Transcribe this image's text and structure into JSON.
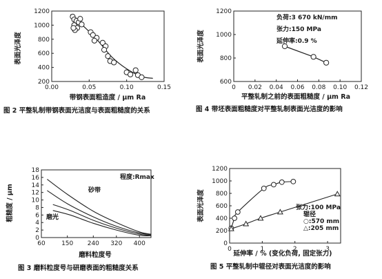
{
  "chart_data": [
    {
      "id": "fig2",
      "type": "scatter",
      "title": "",
      "caption": "图 2  平整轧制带钢表面光洁度与表面粗糙度的关系",
      "xlabel": "带钢表面粗造度 / μm Ra",
      "ylabel": "表面光泽度",
      "xlim": [
        0,
        0.15
      ],
      "ylim": [
        200,
        1200
      ],
      "xticks": [
        "0.00",
        "0.05",
        "0.10",
        "0.15"
      ],
      "yticks": [
        "200",
        "400",
        "600",
        "800",
        "1000",
        "1200"
      ],
      "points": [
        {
          "x": 0.028,
          "y": 1120
        },
        {
          "x": 0.03,
          "y": 1080
        },
        {
          "x": 0.033,
          "y": 1060
        },
        {
          "x": 0.036,
          "y": 1040
        },
        {
          "x": 0.038,
          "y": 1090
        },
        {
          "x": 0.04,
          "y": 1010
        },
        {
          "x": 0.03,
          "y": 1000
        },
        {
          "x": 0.034,
          "y": 960
        },
        {
          "x": 0.031,
          "y": 930
        },
        {
          "x": 0.029,
          "y": 960
        },
        {
          "x": 0.052,
          "y": 900
        },
        {
          "x": 0.055,
          "y": 860
        },
        {
          "x": 0.06,
          "y": 820
        },
        {
          "x": 0.057,
          "y": 780
        },
        {
          "x": 0.068,
          "y": 750
        },
        {
          "x": 0.072,
          "y": 700
        },
        {
          "x": 0.07,
          "y": 650
        },
        {
          "x": 0.075,
          "y": 560
        },
        {
          "x": 0.078,
          "y": 490
        },
        {
          "x": 0.083,
          "y": 470
        },
        {
          "x": 0.1,
          "y": 330
        },
        {
          "x": 0.105,
          "y": 300
        },
        {
          "x": 0.112,
          "y": 360
        },
        {
          "x": 0.115,
          "y": 290
        },
        {
          "x": 0.12,
          "y": 260
        }
      ],
      "fit_curve": [
        {
          "x": 0.025,
          "y": 1150
        },
        {
          "x": 0.04,
          "y": 1010
        },
        {
          "x": 0.06,
          "y": 800
        },
        {
          "x": 0.08,
          "y": 550
        },
        {
          "x": 0.1,
          "y": 380
        },
        {
          "x": 0.12,
          "y": 270
        },
        {
          "x": 0.135,
          "y": 245
        }
      ]
    },
    {
      "id": "fig4",
      "type": "line",
      "title": "",
      "caption": "图 4  带坯表面粗糙度对平整轧制表面光洁度的影响",
      "xlabel": "平整轧制之前的表面粗糙度 / μm Ra",
      "ylabel": "表面光泽度",
      "xlim": [
        0,
        0.12
      ],
      "ylim": [
        600,
        1200
      ],
      "xticks": [
        "0",
        "0.02",
        "0.04",
        "0.06",
        "0.08",
        "0.10",
        "0.12"
      ],
      "yticks": [
        "600",
        "800",
        "1000",
        "1200"
      ],
      "annotations": [
        "负荷:3 670 kN/mm",
        "张力:150 MPa",
        "延伸率:0.9 %"
      ],
      "series": [
        {
          "values": [
            {
              "x": 0.048,
              "y": 900
            },
            {
              "x": 0.075,
              "y": 810
            },
            {
              "x": 0.087,
              "y": 760
            }
          ]
        }
      ]
    },
    {
      "id": "fig3",
      "type": "line",
      "title": "",
      "caption": "图 3  磨料粒度号与研磨表面的粗糙度关系",
      "xlabel": "磨料粒度号",
      "ylabel": "粗糙度 / μm",
      "xlim": [
        60,
        440
      ],
      "ylim": [
        0,
        18
      ],
      "xticks": [
        "60",
        "150",
        "240",
        "320",
        "400"
      ],
      "yticks": [
        "0",
        "2",
        "4",
        "6",
        "8",
        "10",
        "12",
        "14",
        "16",
        "18"
      ],
      "annotations": [
        "程度:Rmax",
        "砂带",
        "磨光"
      ],
      "series": [
        {
          "name": "砂带",
          "values": [
            {
              "x": 80,
              "y": 15.5
            },
            {
              "x": 150,
              "y": 11.5
            },
            {
              "x": 240,
              "y": 7.0
            },
            {
              "x": 320,
              "y": 4.0
            },
            {
              "x": 400,
              "y": 1.5
            },
            {
              "x": 440,
              "y": 0.9
            }
          ]
        },
        {
          "name": "砂带",
          "values": [
            {
              "x": 80,
              "y": 12.5
            },
            {
              "x": 150,
              "y": 9.0
            },
            {
              "x": 240,
              "y": 5.5
            },
            {
              "x": 320,
              "y": 3.0
            },
            {
              "x": 400,
              "y": 1.2
            },
            {
              "x": 440,
              "y": 0.8
            }
          ]
        },
        {
          "name": "磨光",
          "values": [
            {
              "x": 100,
              "y": 8.8
            },
            {
              "x": 160,
              "y": 7.2
            },
            {
              "x": 240,
              "y": 4.6
            },
            {
              "x": 320,
              "y": 2.5
            },
            {
              "x": 400,
              "y": 0.9
            },
            {
              "x": 440,
              "y": 0.6
            }
          ]
        },
        {
          "name": "磨光",
          "values": [
            {
              "x": 100,
              "y": 7.2
            },
            {
              "x": 160,
              "y": 6.0
            },
            {
              "x": 240,
              "y": 3.8
            },
            {
              "x": 320,
              "y": 2.0
            },
            {
              "x": 400,
              "y": 0.6
            },
            {
              "x": 440,
              "y": 0.5
            }
          ]
        }
      ]
    },
    {
      "id": "fig5",
      "type": "line",
      "title": "",
      "caption": "图 5  平整轧制中辊径对表面光洁度的影响",
      "xlabel": "延伸率 / % (变化负荷, 固定张力)",
      "ylabel": "表面光泽度",
      "xlim": [
        0,
        3.4
      ],
      "ylim": [
        0,
        1200
      ],
      "xticks": [
        "0",
        "1",
        "2",
        "3"
      ],
      "yticks": [
        "0",
        "200",
        "400",
        "600",
        "800",
        "1000",
        "1200"
      ],
      "annotations": [
        "张力:100 MPa",
        "辊径",
        "○:570 mm",
        "△:205 mm"
      ],
      "series": [
        {
          "name": "○:570 mm",
          "marker": "circle",
          "values": [
            {
              "x": 0.05,
              "y": 240
            },
            {
              "x": 0.15,
              "y": 400
            },
            {
              "x": 0.25,
              "y": 500
            },
            {
              "x": 1.05,
              "y": 880
            },
            {
              "x": 1.35,
              "y": 940
            },
            {
              "x": 1.6,
              "y": 980
            },
            {
              "x": 1.95,
              "y": 990
            }
          ]
        },
        {
          "name": "△:205 mm",
          "marker": "triangle",
          "values": [
            {
              "x": 0.05,
              "y": 230
            },
            {
              "x": 0.5,
              "y": 310
            },
            {
              "x": 0.95,
              "y": 400
            },
            {
              "x": 1.55,
              "y": 500
            },
            {
              "x": 3.3,
              "y": 790
            }
          ]
        }
      ]
    }
  ]
}
